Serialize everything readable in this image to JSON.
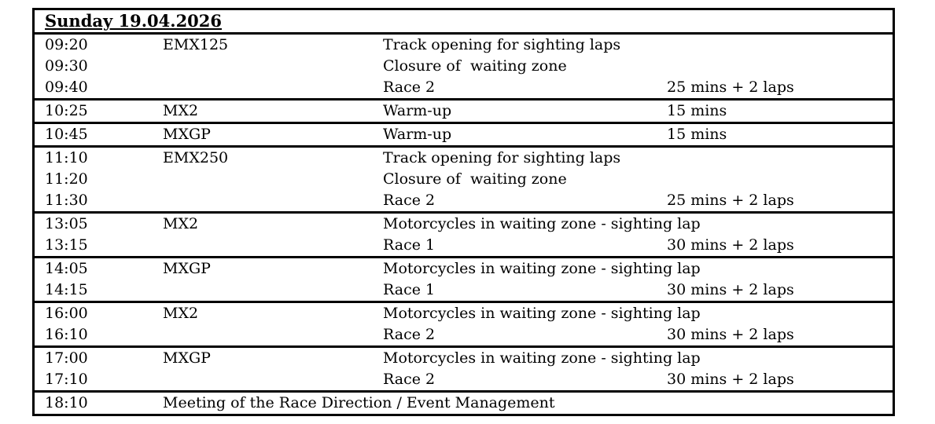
{
  "page": {
    "background_color": "#ffffff",
    "text_color": "#000000",
    "border_color": "#000000"
  },
  "title": "Sunday 19.04.2026",
  "schedule": {
    "groups": [
      {
        "rows": [
          {
            "time": "09:20",
            "class": "EMX125",
            "activity": "Track opening for sighting laps",
            "duration": ""
          },
          {
            "time": "09:30",
            "class": "",
            "activity": "Closure of  waiting zone",
            "duration": ""
          },
          {
            "time": "09:40",
            "class": "",
            "activity": "Race 2",
            "duration": "25 mins + 2 laps"
          }
        ]
      },
      {
        "rows": [
          {
            "time": "10:25",
            "class": "MX2",
            "activity": "Warm-up",
            "duration": "15 mins"
          }
        ]
      },
      {
        "rows": [
          {
            "time": "10:45",
            "class": "MXGP",
            "activity": "Warm-up",
            "duration": "15 mins"
          }
        ]
      },
      {
        "rows": [
          {
            "time": "11:10",
            "class": "EMX250",
            "activity": "Track opening for sighting laps",
            "duration": ""
          },
          {
            "time": "11:20",
            "class": "",
            "activity": "Closure of  waiting zone",
            "duration": ""
          },
          {
            "time": "11:30",
            "class": "",
            "activity": "Race 2",
            "duration": "25 mins + 2 laps"
          }
        ]
      },
      {
        "rows": [
          {
            "time": "13:05",
            "class": "MX2",
            "activity": "Motorcycles in waiting zone - sighting lap",
            "duration": ""
          },
          {
            "time": "13:15",
            "class": "",
            "activity": "Race 1",
            "duration": "30 mins + 2 laps"
          }
        ]
      },
      {
        "rows": [
          {
            "time": "14:05",
            "class": "MXGP",
            "activity": "Motorcycles in waiting zone - sighting lap",
            "duration": ""
          },
          {
            "time": "14:15",
            "class": "",
            "activity": "Race 1",
            "duration": "30 mins + 2 laps"
          }
        ]
      },
      {
        "rows": [
          {
            "time": "16:00",
            "class": "MX2",
            "activity": "Motorcycles in waiting zone - sighting lap",
            "duration": ""
          },
          {
            "time": "16:10",
            "class": "",
            "activity": "Race 2",
            "duration": "30 mins + 2 laps"
          }
        ]
      },
      {
        "rows": [
          {
            "time": "17:00",
            "class": "MXGP",
            "activity": "Motorcycles in waiting zone - sighting lap",
            "duration": ""
          },
          {
            "time": "17:10",
            "class": "",
            "activity": "Race 2",
            "duration": "30 mins + 2 laps"
          }
        ]
      },
      {
        "rows": [
          {
            "time": "18:10",
            "span": "Meeting of the Race Direction / Event Management"
          }
        ]
      }
    ]
  }
}
